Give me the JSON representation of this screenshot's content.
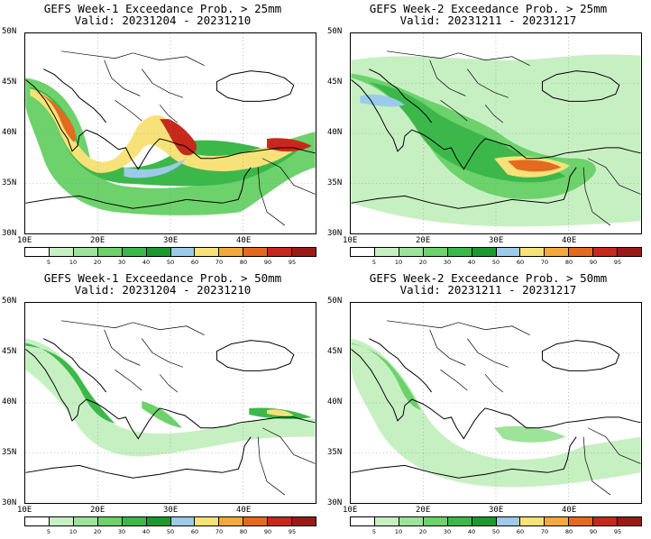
{
  "panels": [
    {
      "title": "GEFS Week-1 Exceedance Prob. > 25mm",
      "valid": "Valid: 20231204 - 20231210"
    },
    {
      "title": "GEFS Week-2 Exceedance Prob. > 25mm",
      "valid": "Valid: 20231211 - 20231217"
    },
    {
      "title": "GEFS Week-1 Exceedance Prob. > 50mm",
      "valid": "Valid: 20231204 - 20231210"
    },
    {
      "title": "GEFS Week-2 Exceedance Prob. > 50mm",
      "valid": "Valid: 20231211 - 20231217"
    }
  ],
  "lat_labels": [
    "50N",
    "45N",
    "40N",
    "35N",
    "30N"
  ],
  "lon_labels": [
    "10E",
    "20E",
    "30E",
    "40E"
  ],
  "colorbar": {
    "ticks": [
      "5",
      "10",
      "20",
      "30",
      "40",
      "50",
      "60",
      "70",
      "80",
      "90",
      "95"
    ],
    "colors": [
      "#ffffff",
      "#c7f0c2",
      "#9ee39a",
      "#6dd26b",
      "#3cb84a",
      "#1a9a2e",
      "#9ccbea",
      "#f7e27a",
      "#f4a93c",
      "#e46a1f",
      "#c8281c",
      "#9c1a16"
    ]
  }
}
